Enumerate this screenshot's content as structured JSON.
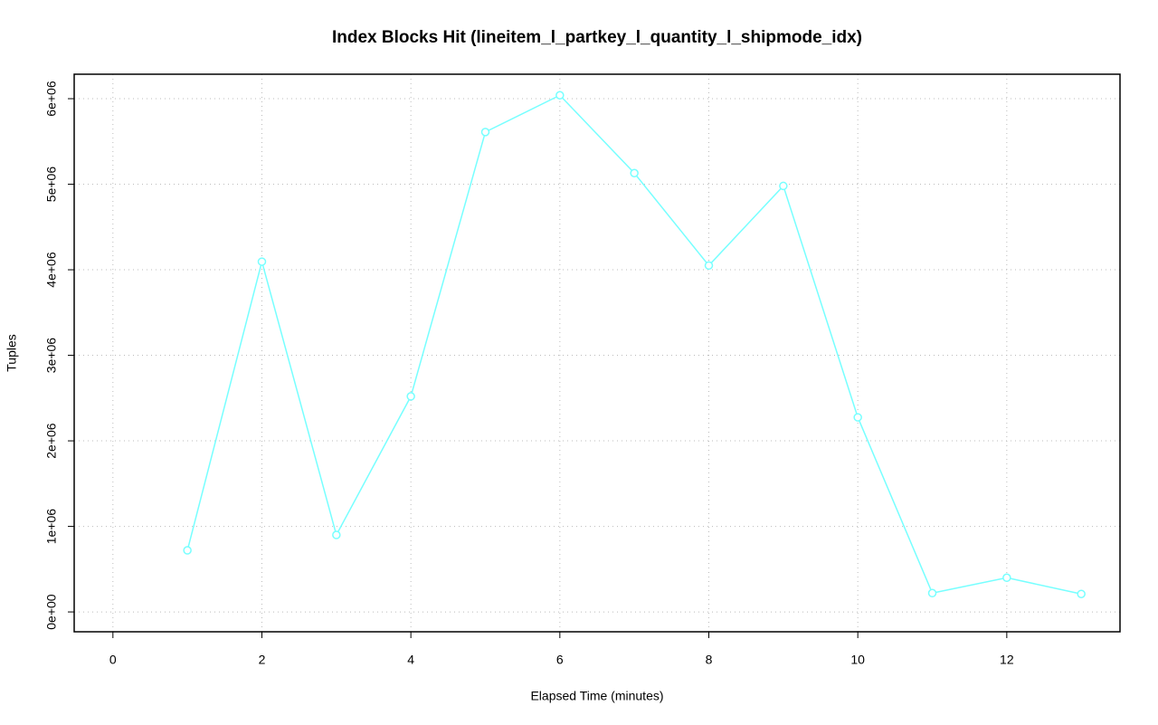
{
  "chart_data": {
    "type": "line",
    "title": "Index Blocks Hit (lineitem_l_partkey_l_quantity_l_shipmode_idx)",
    "x_label": "Elapsed Time (minutes)",
    "y_label": "Tuples",
    "x": [
      1,
      2,
      3,
      4,
      5,
      6,
      7,
      8,
      9,
      10,
      11,
      12,
      13
    ],
    "series": [
      {
        "color": "#77ffff",
        "values": [
          720000,
          4095000,
          900000,
          2520000,
          5610000,
          6040000,
          5130000,
          4050000,
          4980000,
          2275000,
          220000,
          400000,
          210000
        ]
      }
    ],
    "xlim": [
      -0.52,
      13.52
    ],
    "ylim": [
      -232000,
      6286000
    ],
    "xticks": [
      0,
      2,
      4,
      6,
      8,
      10,
      12
    ],
    "yticks": [
      {
        "value": 0,
        "label": "0e+00"
      },
      {
        "value": 1000000,
        "label": "1e+06"
      },
      {
        "value": 2000000,
        "label": "2e+06"
      },
      {
        "value": 3000000,
        "label": "3e+06"
      },
      {
        "value": 4000000,
        "label": "4e+06"
      },
      {
        "value": 5000000,
        "label": "5e+06"
      },
      {
        "value": 6000000,
        "label": "6e+06"
      }
    ],
    "grid": true
  }
}
